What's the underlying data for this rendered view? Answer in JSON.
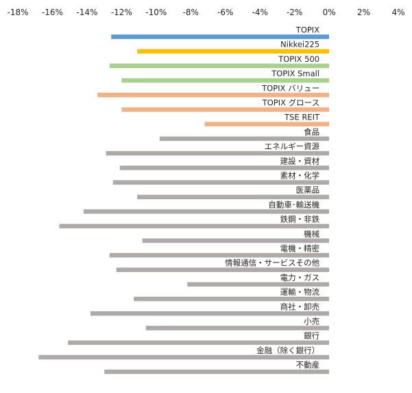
{
  "chart_data": {
    "type": "bar",
    "orientation": "horizontal",
    "title": "",
    "xlabel": "",
    "ylabel": "",
    "xlim": [
      -18,
      4
    ],
    "x_ticks": [
      "-18%",
      "-16%",
      "-14%",
      "-12%",
      "-10%",
      "-8%",
      "-6%",
      "-4%",
      "-2%",
      "0%",
      "2%",
      "4%"
    ],
    "x_tick_values": [
      -18,
      -16,
      -14,
      -12,
      -10,
      -8,
      -6,
      -4,
      -2,
      0,
      2,
      4
    ],
    "x_axis_position": "top",
    "grid": false,
    "legend": "none",
    "categories": [
      "TOPIX",
      "Nikkei225",
      "TOPIX 500",
      "TOPIX Small",
      "TOPIX バリュー",
      "TOPIX グロース",
      "TSE REIT",
      "食品",
      "エネルギー資源",
      "建設・資材",
      "素材・化学",
      "医薬品",
      "自動車･輸送機",
      "鉄鋼・非鉄",
      "機械",
      "電機・精密",
      "情報通信・サービスその他",
      "電力・ガス",
      "運輸・物流",
      "商社・卸売",
      "小売",
      "銀行",
      "金融（除く銀行）",
      "不動産"
    ],
    "values": [
      -12.6,
      -11.1,
      -12.7,
      -12.0,
      -13.4,
      -12.0,
      -7.2,
      -9.8,
      -12.9,
      -12.1,
      -12.5,
      -11.1,
      -14.2,
      -15.6,
      -10.8,
      -12.7,
      -12.3,
      -8.2,
      -11.3,
      -13.8,
      -10.6,
      -15.1,
      -16.8,
      -13.0
    ],
    "bar_colors": [
      "#5b9bd5",
      "#ffc000",
      "#a9d18e",
      "#a9d18e",
      "#f4b183",
      "#f4b183",
      "#f4b183",
      "#aeaaaa",
      "#aeaaaa",
      "#aeaaaa",
      "#aeaaaa",
      "#aeaaaa",
      "#aeaaaa",
      "#aeaaaa",
      "#aeaaaa",
      "#aeaaaa",
      "#aeaaaa",
      "#aeaaaa",
      "#aeaaaa",
      "#aeaaaa",
      "#aeaaaa",
      "#aeaaaa",
      "#aeaaaa",
      "#aeaaaa"
    ]
  }
}
